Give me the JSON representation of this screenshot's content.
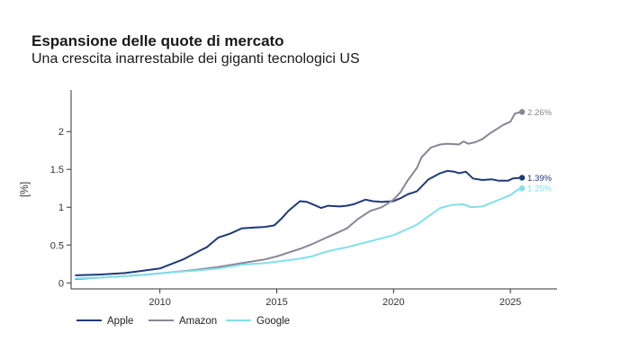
{
  "chart_data": {
    "type": "line",
    "title": "Espansione delle quote di mercato",
    "subtitle": "Una crescita inarrestabile dei giganti tecnologici US",
    "ylabel": "[%]",
    "xlabel": "",
    "xlim": [
      2006.2,
      2027.0
    ],
    "ylim": [
      -0.08,
      2.55
    ],
    "xticks": [
      2010,
      2015,
      2020,
      2025
    ],
    "yticks": [
      0,
      0.5,
      1,
      1.5,
      2
    ],
    "ytick_labels": [
      "0",
      "0.5",
      "1",
      "1.5",
      "2"
    ],
    "grid": false,
    "legend_position": "bottom-left",
    "series": [
      {
        "name": "Apple",
        "color": "#1f3a78",
        "end_label": "1.39%",
        "points": [
          [
            2006.4,
            0.1
          ],
          [
            2007.5,
            0.11
          ],
          [
            2008.5,
            0.13
          ],
          [
            2009.0,
            0.15
          ],
          [
            2010.0,
            0.19
          ],
          [
            2011.0,
            0.31
          ],
          [
            2011.8,
            0.44
          ],
          [
            2012.0,
            0.47
          ],
          [
            2012.5,
            0.6
          ],
          [
            2013.0,
            0.65
          ],
          [
            2013.5,
            0.72
          ],
          [
            2014.0,
            0.73
          ],
          [
            2014.5,
            0.74
          ],
          [
            2014.9,
            0.76
          ],
          [
            2015.2,
            0.85
          ],
          [
            2015.5,
            0.95
          ],
          [
            2016.0,
            1.08
          ],
          [
            2016.3,
            1.07
          ],
          [
            2016.6,
            1.03
          ],
          [
            2016.9,
            0.99
          ],
          [
            2017.2,
            1.02
          ],
          [
            2017.7,
            1.01
          ],
          [
            2018.0,
            1.02
          ],
          [
            2018.3,
            1.04
          ],
          [
            2018.8,
            1.1
          ],
          [
            2019.1,
            1.08
          ],
          [
            2019.5,
            1.07
          ],
          [
            2020.0,
            1.08
          ],
          [
            2020.3,
            1.12
          ],
          [
            2020.6,
            1.17
          ],
          [
            2021.0,
            1.21
          ],
          [
            2021.5,
            1.37
          ],
          [
            2022.0,
            1.45
          ],
          [
            2022.3,
            1.48
          ],
          [
            2022.6,
            1.47
          ],
          [
            2022.8,
            1.45
          ],
          [
            2023.1,
            1.47
          ],
          [
            2023.4,
            1.38
          ],
          [
            2023.8,
            1.36
          ],
          [
            2024.2,
            1.37
          ],
          [
            2024.5,
            1.35
          ],
          [
            2024.9,
            1.35
          ],
          [
            2025.1,
            1.38
          ],
          [
            2025.5,
            1.39
          ]
        ]
      },
      {
        "name": "Amazon",
        "color": "#8a8497",
        "end_label": "2.26%",
        "points": [
          [
            2006.4,
            0.05
          ],
          [
            2007.5,
            0.07
          ],
          [
            2008.5,
            0.09
          ],
          [
            2009.5,
            0.11
          ],
          [
            2010.5,
            0.14
          ],
          [
            2011.5,
            0.17
          ],
          [
            2012.5,
            0.21
          ],
          [
            2013.5,
            0.26
          ],
          [
            2014.5,
            0.31
          ],
          [
            2015.0,
            0.35
          ],
          [
            2015.5,
            0.4
          ],
          [
            2016.0,
            0.45
          ],
          [
            2016.5,
            0.51
          ],
          [
            2017.0,
            0.58
          ],
          [
            2017.5,
            0.65
          ],
          [
            2018.0,
            0.72
          ],
          [
            2018.5,
            0.85
          ],
          [
            2019.0,
            0.95
          ],
          [
            2019.5,
            1.0
          ],
          [
            2020.0,
            1.1
          ],
          [
            2020.3,
            1.2
          ],
          [
            2020.6,
            1.35
          ],
          [
            2021.0,
            1.52
          ],
          [
            2021.2,
            1.66
          ],
          [
            2021.6,
            1.79
          ],
          [
            2022.0,
            1.83
          ],
          [
            2022.3,
            1.84
          ],
          [
            2022.8,
            1.83
          ],
          [
            2023.0,
            1.87
          ],
          [
            2023.2,
            1.84
          ],
          [
            2023.5,
            1.86
          ],
          [
            2023.8,
            1.9
          ],
          [
            2024.1,
            1.97
          ],
          [
            2024.4,
            2.03
          ],
          [
            2024.7,
            2.09
          ],
          [
            2025.0,
            2.13
          ],
          [
            2025.2,
            2.24
          ],
          [
            2025.5,
            2.26
          ]
        ]
      },
      {
        "name": "Google",
        "color": "#7fe0ea",
        "end_label": "1.25%",
        "points": [
          [
            2006.4,
            0.06
          ],
          [
            2007.5,
            0.07
          ],
          [
            2008.5,
            0.09
          ],
          [
            2009.5,
            0.11
          ],
          [
            2010.5,
            0.14
          ],
          [
            2011.5,
            0.16
          ],
          [
            2012.5,
            0.19
          ],
          [
            2013.5,
            0.24
          ],
          [
            2014.5,
            0.26
          ],
          [
            2015.0,
            0.28
          ],
          [
            2015.5,
            0.3
          ],
          [
            2016.0,
            0.32
          ],
          [
            2016.5,
            0.35
          ],
          [
            2017.0,
            0.4
          ],
          [
            2017.5,
            0.44
          ],
          [
            2018.0,
            0.47
          ],
          [
            2018.5,
            0.51
          ],
          [
            2019.0,
            0.55
          ],
          [
            2019.5,
            0.59
          ],
          [
            2020.0,
            0.63
          ],
          [
            2020.5,
            0.7
          ],
          [
            2021.0,
            0.77
          ],
          [
            2021.5,
            0.88
          ],
          [
            2022.0,
            0.99
          ],
          [
            2022.5,
            1.03
          ],
          [
            2023.0,
            1.04
          ],
          [
            2023.3,
            1.0
          ],
          [
            2023.8,
            1.01
          ],
          [
            2024.2,
            1.06
          ],
          [
            2024.6,
            1.11
          ],
          [
            2025.0,
            1.16
          ],
          [
            2025.3,
            1.23
          ],
          [
            2025.5,
            1.25
          ]
        ]
      }
    ]
  }
}
